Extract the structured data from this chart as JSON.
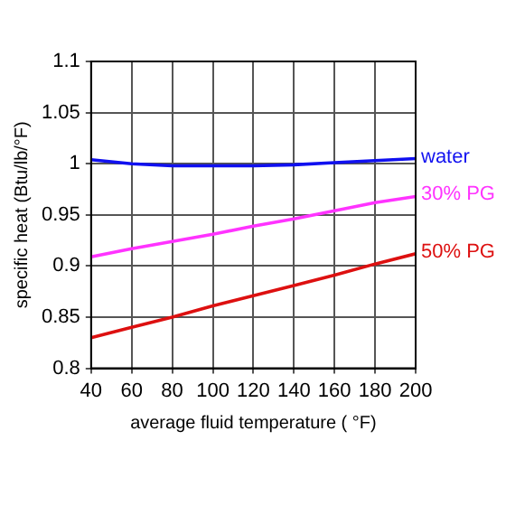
{
  "chart_data": {
    "type": "line",
    "xlabel": "average fluid temperature ( °F)",
    "ylabel": "specific heat (Btu/lb/°F)",
    "x": [
      40,
      60,
      80,
      100,
      120,
      140,
      160,
      180,
      200
    ],
    "series": [
      {
        "name": "water",
        "color": "#1010f0",
        "values": [
          1.004,
          1.0,
          0.998,
          0.998,
          0.998,
          0.999,
          1.001,
          1.003,
          1.005
        ]
      },
      {
        "name": "30% PG",
        "color": "#ff33ff",
        "values": [
          0.909,
          0.917,
          0.924,
          0.931,
          0.939,
          0.946,
          0.954,
          0.962,
          0.968
        ]
      },
      {
        "name": "50% PG",
        "color": "#dd1010",
        "values": [
          0.83,
          0.84,
          0.85,
          0.861,
          0.871,
          0.881,
          0.891,
          0.902,
          0.912
        ]
      }
    ],
    "xlim": [
      40,
      200
    ],
    "xticks": [
      40,
      60,
      80,
      100,
      120,
      140,
      160,
      180,
      200
    ],
    "ylim": [
      0.8,
      1.1
    ],
    "yticks": [
      0.8,
      0.85,
      0.9,
      0.95,
      1,
      1.05,
      1.1
    ],
    "grid": true,
    "legend": false,
    "marker": "none",
    "line_style": "solid"
  }
}
